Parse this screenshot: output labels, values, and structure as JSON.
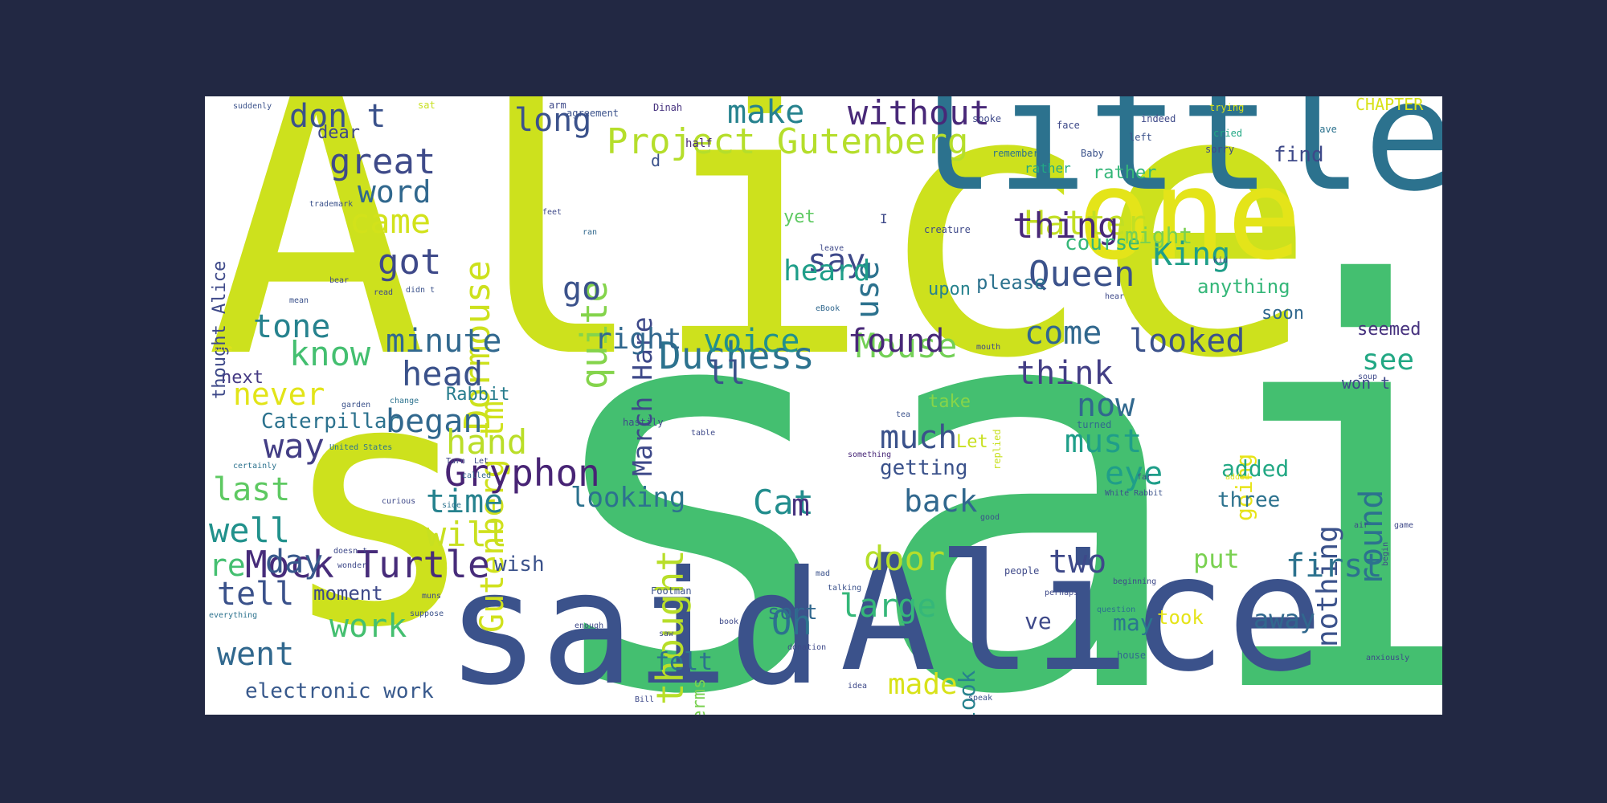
{
  "wordcloud": {
    "background": "#ffffff",
    "frame_color": "#222843",
    "words": [
      {
        "text": "said",
        "color": "#44bf70"
      },
      {
        "text": "Alice",
        "color": "#cde11d"
      },
      {
        "text": "s",
        "color": "#cde11d"
      },
      {
        "text": "said",
        "color": "#3b528b"
      },
      {
        "text": "Alice",
        "color": "#3b528b"
      },
      {
        "text": "little",
        "color": "#2c728e"
      },
      {
        "text": "one",
        "color": "#e4e419"
      },
      {
        "text": "Project Gutenberg",
        "color": "#b5de2b"
      },
      {
        "text": "Gutenberg tm",
        "color": "#d0e11c"
      },
      {
        "text": "March Hare",
        "color": "#3e4989"
      },
      {
        "text": "Dormouse",
        "color": "#cde11d"
      },
      {
        "text": "quite",
        "color": "#84d44b"
      },
      {
        "text": "thought",
        "color": "#b8de29"
      },
      {
        "text": "Mock Turtle",
        "color": "#472c7a"
      },
      {
        "text": "Gryphon",
        "color": "#482475"
      },
      {
        "text": "Duchess",
        "color": "#2c728e"
      },
      {
        "text": "Queen",
        "color": "#3b528b"
      },
      {
        "text": "King",
        "color": "#1f9e89"
      },
      {
        "text": "Hatter",
        "color": "#c2df23"
      },
      {
        "text": "Mouse",
        "color": "#73d056"
      },
      {
        "text": "Cat",
        "color": "#228d8d"
      },
      {
        "text": "Caterpillar",
        "color": "#2c728e"
      },
      {
        "text": "Rabbit",
        "color": "#287d8e"
      },
      {
        "text": "don t",
        "color": "#3b528b"
      },
      {
        "text": "great",
        "color": "#3e4a89"
      },
      {
        "text": "word",
        "color": "#31688e"
      },
      {
        "text": "came",
        "color": "#d2e21b"
      },
      {
        "text": "got",
        "color": "#3e4989"
      },
      {
        "text": "go",
        "color": "#3b528b"
      },
      {
        "text": "long",
        "color": "#3b528b"
      },
      {
        "text": "make",
        "color": "#26828e"
      },
      {
        "text": "without",
        "color": "#482878"
      },
      {
        "text": "use",
        "color": "#2c728e"
      },
      {
        "text": "say",
        "color": "#3e4989"
      },
      {
        "text": "heard",
        "color": "#1f9e89"
      },
      {
        "text": "thing",
        "color": "#482878"
      },
      {
        "text": "course",
        "color": "#35b779"
      },
      {
        "text": "might",
        "color": "#7ad151"
      },
      {
        "text": "rather",
        "color": "#35b779"
      },
      {
        "text": "find",
        "color": "#3e4989"
      },
      {
        "text": "CHAPTER",
        "color": "#d8e219"
      },
      {
        "text": "anything",
        "color": "#35b779"
      },
      {
        "text": "upon",
        "color": "#26828e"
      },
      {
        "text": "please",
        "color": "#2c728e"
      },
      {
        "text": "soon",
        "color": "#31688e"
      },
      {
        "text": "seemed",
        "color": "#46327e"
      },
      {
        "text": "see",
        "color": "#22a884"
      },
      {
        "text": "round",
        "color": "#2c728e"
      },
      {
        "text": "nothing",
        "color": "#3b528b"
      },
      {
        "text": "won t",
        "color": "#3e4989"
      },
      {
        "text": "tone",
        "color": "#26828e"
      },
      {
        "text": "minute",
        "color": "#31688e"
      },
      {
        "text": "right",
        "color": "#31688e"
      },
      {
        "text": "voice",
        "color": "#21918c"
      },
      {
        "text": "found",
        "color": "#482878"
      },
      {
        "text": "come",
        "color": "#31688e"
      },
      {
        "text": "looked",
        "color": "#3b528b"
      },
      {
        "text": "know",
        "color": "#44bf70"
      },
      {
        "text": "head",
        "color": "#3b528b"
      },
      {
        "text": "ll",
        "color": "#3b528b"
      },
      {
        "text": "think",
        "color": "#433e85"
      },
      {
        "text": "never",
        "color": "#e2e418"
      },
      {
        "text": "began",
        "color": "#31688e"
      },
      {
        "text": "now",
        "color": "#31688e"
      },
      {
        "text": "way",
        "color": "#433e85"
      },
      {
        "text": "hand",
        "color": "#bade28"
      },
      {
        "text": "much",
        "color": "#3b528b"
      },
      {
        "text": "must",
        "color": "#1f9e89"
      },
      {
        "text": "going",
        "color": "#e7e419"
      },
      {
        "text": "getting",
        "color": "#3b528b"
      },
      {
        "text": "added",
        "color": "#22a884"
      },
      {
        "text": "eye",
        "color": "#1f9e89"
      },
      {
        "text": "last",
        "color": "#5ec962"
      },
      {
        "text": "time",
        "color": "#26828e"
      },
      {
        "text": "looking",
        "color": "#2c728e"
      },
      {
        "text": "m",
        "color": "#46337f"
      },
      {
        "text": "back",
        "color": "#31688e"
      },
      {
        "text": "three",
        "color": "#2c728e"
      },
      {
        "text": "well",
        "color": "#21918c"
      },
      {
        "text": "will",
        "color": "#c8e020"
      },
      {
        "text": "re",
        "color": "#44bf70"
      },
      {
        "text": "day",
        "color": "#38598c"
      },
      {
        "text": "door",
        "color": "#b5de2b"
      },
      {
        "text": "two",
        "color": "#3e4989"
      },
      {
        "text": "put",
        "color": "#7ad151"
      },
      {
        "text": "first",
        "color": "#2c728e"
      },
      {
        "text": "took",
        "color": "#e5e419"
      },
      {
        "text": "tell",
        "color": "#3b528b"
      },
      {
        "text": "moment",
        "color": "#3e4989"
      },
      {
        "text": "work",
        "color": "#44bf70"
      },
      {
        "text": "Oh",
        "color": "#2c728e"
      },
      {
        "text": "large",
        "color": "#35b779"
      },
      {
        "text": "ve",
        "color": "#3e4989"
      },
      {
        "text": "may",
        "color": "#2a788e"
      },
      {
        "text": "away",
        "color": "#31688e"
      },
      {
        "text": "went",
        "color": "#31688e"
      },
      {
        "text": "made",
        "color": "#d8e219"
      },
      {
        "text": "felt",
        "color": "#2c728e"
      },
      {
        "text": "electronic work",
        "color": "#38598c"
      },
      {
        "text": "look",
        "color": "#26828e"
      },
      {
        "text": "sort",
        "color": "#31688e"
      },
      {
        "text": "wish",
        "color": "#3b528b"
      },
      {
        "text": "next",
        "color": "#443983"
      },
      {
        "text": "dear",
        "color": "#3e4989"
      },
      {
        "text": "yet",
        "color": "#5ec962"
      },
      {
        "text": "take",
        "color": "#86d549"
      },
      {
        "text": "Let",
        "color": "#c8e020"
      },
      {
        "text": "terms",
        "color": "#7ad151"
      },
      {
        "text": "thought Alice",
        "color": "#3e4989"
      },
      {
        "text": "half",
        "color": "#482878"
      },
      {
        "text": "rather",
        "color": "#22a884"
      },
      {
        "text": "agreement",
        "color": "#3b528b"
      },
      {
        "text": "Dinah",
        "color": "#46327e"
      },
      {
        "text": "suddenly",
        "color": "#3b528b"
      },
      {
        "text": "remember",
        "color": "#2c728e"
      },
      {
        "text": "Baby",
        "color": "#3b528b"
      },
      {
        "text": "trying",
        "color": "#d8e219"
      },
      {
        "text": "indeed",
        "color": "#3e4989"
      },
      {
        "text": "cried",
        "color": "#22a884"
      },
      {
        "text": "gave",
        "color": "#2c728e"
      },
      {
        "text": "creature",
        "color": "#3e4989"
      },
      {
        "text": "trademark",
        "color": "#3b528b"
      },
      {
        "text": "hastily",
        "color": "#3e4989"
      },
      {
        "text": "United States",
        "color": "#2c728e"
      },
      {
        "text": "certainly",
        "color": "#2c728e"
      },
      {
        "text": "called",
        "color": "#31688e"
      },
      {
        "text": "curious",
        "color": "#3e4989"
      },
      {
        "text": "side",
        "color": "#2c728e"
      },
      {
        "text": "turned",
        "color": "#31688e"
      },
      {
        "text": "replied",
        "color": "#c8e020"
      },
      {
        "text": "White Rabbit",
        "color": "#3b528b"
      },
      {
        "text": "suppose",
        "color": "#3b528b"
      },
      {
        "text": "enough",
        "color": "#3e4989"
      },
      {
        "text": "everything",
        "color": "#2c728e"
      },
      {
        "text": "people",
        "color": "#3e4989"
      },
      {
        "text": "perhaps",
        "color": "#3e4989"
      },
      {
        "text": "question",
        "color": "#2c728e"
      },
      {
        "text": "beginning",
        "color": "#3e4989"
      },
      {
        "text": "Footman",
        "color": "#3b528b"
      },
      {
        "text": "talking",
        "color": "#3b528b"
      },
      {
        "text": "donation",
        "color": "#3e4989"
      },
      {
        "text": "house",
        "color": "#31688e"
      },
      {
        "text": "anxiously",
        "color": "#3e4989"
      },
      {
        "text": "idea",
        "color": "#3e4989"
      },
      {
        "text": "speak",
        "color": "#3b528b"
      },
      {
        "text": "Bill",
        "color": "#3e4989"
      },
      {
        "text": "something",
        "color": "#482878"
      },
      {
        "text": "good",
        "color": "#3b528b"
      },
      {
        "text": "garden",
        "color": "#3b528b"
      },
      {
        "text": "change",
        "color": "#2c728e"
      },
      {
        "text": "added",
        "color": "#e7e419"
      },
      {
        "text": "wonder",
        "color": "#3e4989"
      },
      {
        "text": "doesn t",
        "color": "#3e4989"
      },
      {
        "text": "book",
        "color": "#3e4989"
      },
      {
        "text": "mad",
        "color": "#3b528b"
      },
      {
        "text": "saw",
        "color": "#3e4989"
      },
      {
        "text": "sure",
        "color": "#e7e419"
      },
      {
        "text": "mean",
        "color": "#3b528b"
      },
      {
        "text": "read",
        "color": "#3e4989"
      },
      {
        "text": "didn t",
        "color": "#3b528b"
      },
      {
        "text": "feet",
        "color": "#3e4989"
      },
      {
        "text": "ran",
        "color": "#31688e"
      },
      {
        "text": "left",
        "color": "#3b528b"
      },
      {
        "text": "face",
        "color": "#3e4989"
      },
      {
        "text": "spoke",
        "color": "#3e4989"
      },
      {
        "text": "arm",
        "color": "#3e4989"
      },
      {
        "text": "sat",
        "color": "#c8e020"
      },
      {
        "text": "eBook",
        "color": "#31688e"
      },
      {
        "text": "hear",
        "color": "#3e4989"
      },
      {
        "text": "leave",
        "color": "#3e4989"
      },
      {
        "text": "kid",
        "color": "#3e4989"
      },
      {
        "text": "sorry",
        "color": "#3e4989"
      },
      {
        "text": "mouth",
        "color": "#3e4989"
      },
      {
        "text": "tea",
        "color": "#3b528b"
      },
      {
        "text": "table",
        "color": "#3e4989"
      },
      {
        "text": "far",
        "color": "#3e4989"
      },
      {
        "text": "game",
        "color": "#3e4989"
      },
      {
        "text": "begin",
        "color": "#3e4989"
      },
      {
        "text": "air",
        "color": "#3e4989"
      },
      {
        "text": "d",
        "color": "#3b528b"
      },
      {
        "text": "I",
        "color": "#3e4989"
      },
      {
        "text": "Turn",
        "color": "#3e4989"
      },
      {
        "text": "Let",
        "color": "#3e4989"
      },
      {
        "text": "muns",
        "color": "#3e4989"
      },
      {
        "text": "soup",
        "color": "#3e4989"
      },
      {
        "text": "bear",
        "color": "#3e4989"
      }
    ]
  }
}
